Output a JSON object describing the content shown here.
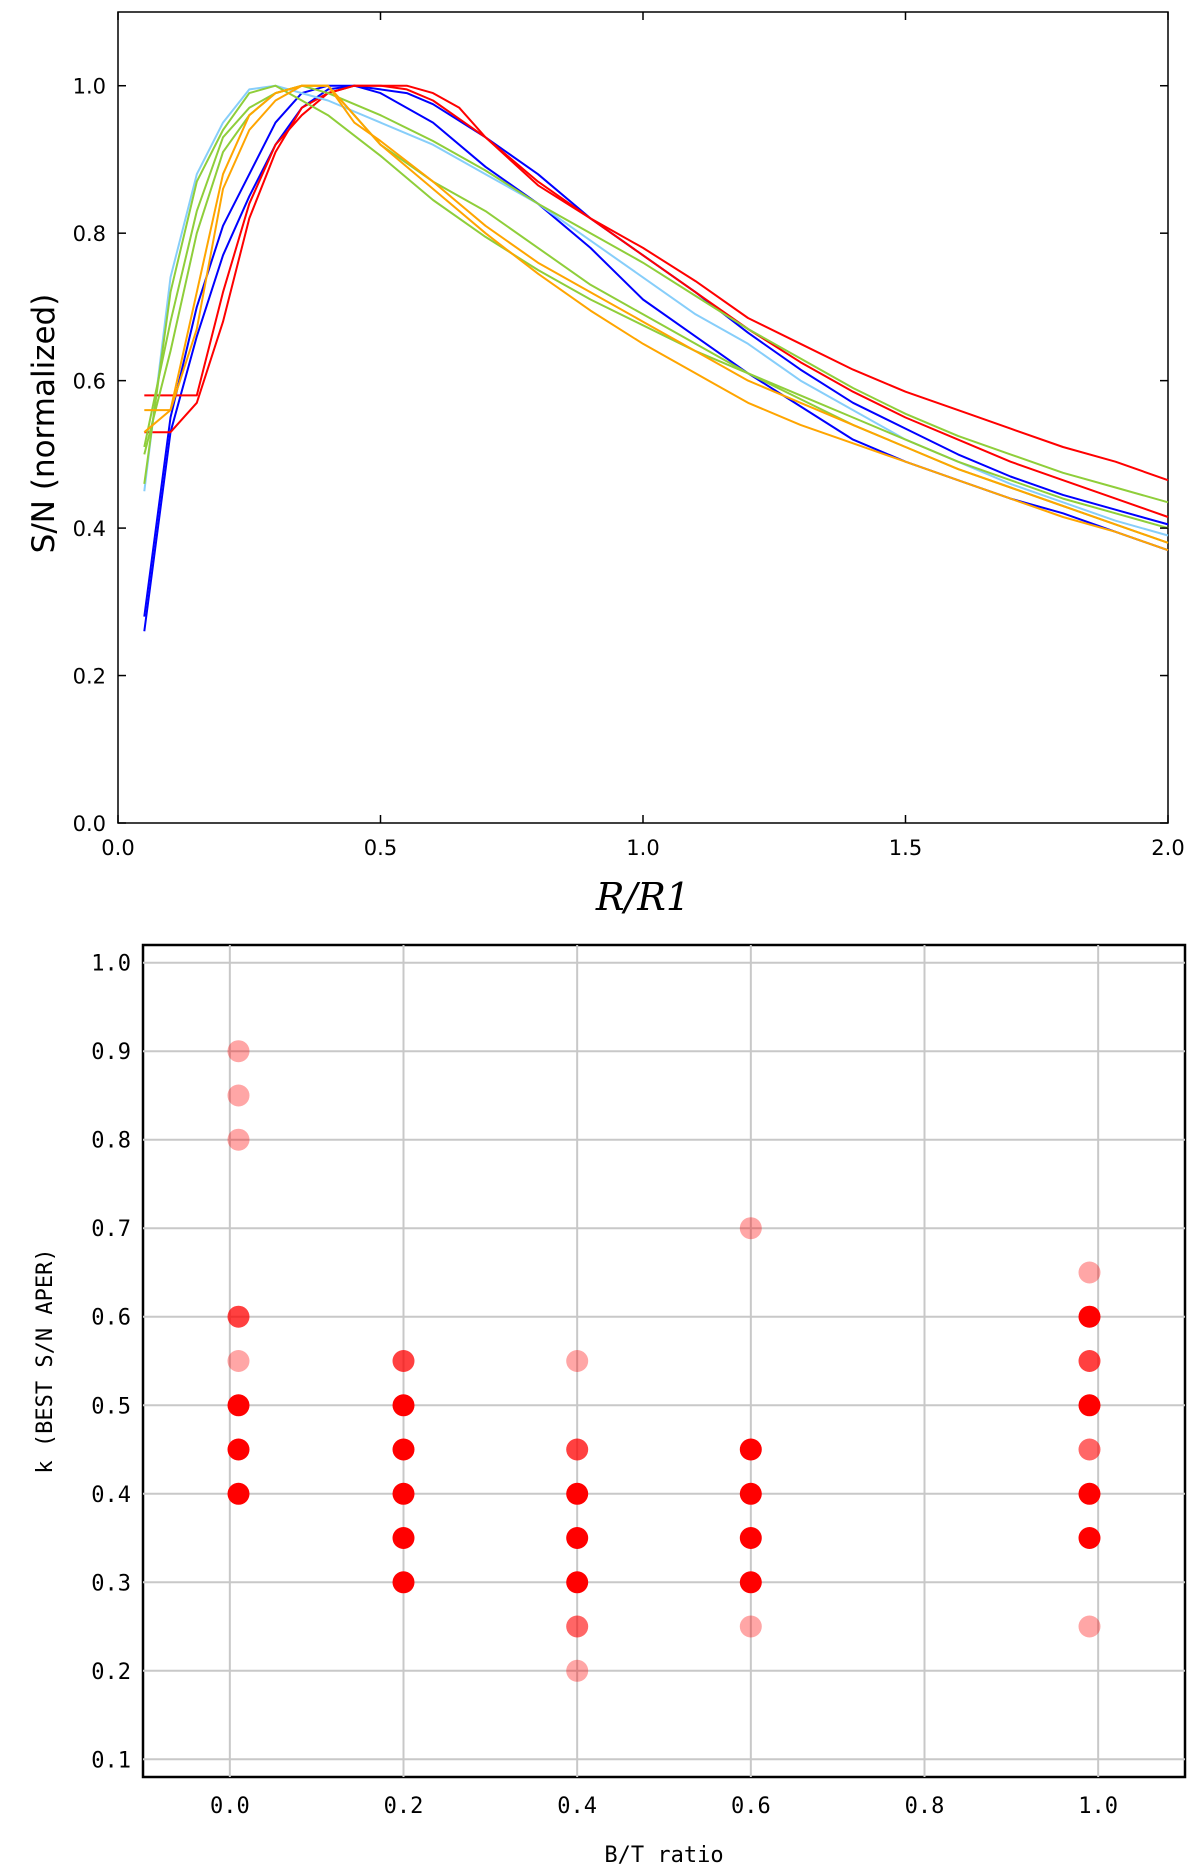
{
  "chart_data": [
    {
      "type": "line",
      "title": "",
      "xlabel": "R/R1",
      "ylabel": "S/N (normalized)",
      "xlim": [
        0.0,
        2.0
      ],
      "ylim": [
        0.0,
        1.1
      ],
      "xticks": [
        "0.0",
        "0.5",
        "1.0",
        "1.5",
        "2.0"
      ],
      "yticks": [
        "0.0",
        "0.2",
        "0.4",
        "0.6",
        "0.8",
        "1.0"
      ],
      "colors": {
        "blue": "#0000ff",
        "red": "#ff0000",
        "lightblue": "#87cefa",
        "green": "#8fce3a",
        "orange": "#ffa500"
      },
      "series": [
        {
          "name": "blue-1",
          "color": "blue",
          "x": [
            0.05,
            0.1,
            0.15,
            0.2,
            0.25,
            0.3,
            0.35,
            0.4,
            0.45,
            0.5,
            0.6,
            0.7,
            0.8,
            0.9,
            1.0,
            1.1,
            1.2,
            1.3,
            1.4,
            1.5,
            1.6,
            1.7,
            1.8,
            1.9,
            2.0
          ],
          "y": [
            0.26,
            0.53,
            0.66,
            0.77,
            0.85,
            0.92,
            0.97,
            0.995,
            1.0,
            0.99,
            0.95,
            0.89,
            0.84,
            0.78,
            0.71,
            0.66,
            0.61,
            0.565,
            0.52,
            0.49,
            0.465,
            0.44,
            0.42,
            0.395,
            0.37
          ]
        },
        {
          "name": "blue-2",
          "color": "blue",
          "x": [
            0.05,
            0.1,
            0.15,
            0.2,
            0.25,
            0.3,
            0.35,
            0.4,
            0.45,
            0.5,
            0.55,
            0.6,
            0.7,
            0.8,
            0.9,
            1.0,
            1.1,
            1.2,
            1.3,
            1.4,
            1.5,
            1.6,
            1.7,
            1.8,
            1.9,
            2.0
          ],
          "y": [
            0.28,
            0.55,
            0.7,
            0.81,
            0.88,
            0.95,
            0.99,
            1.0,
            1.0,
            0.995,
            0.99,
            0.975,
            0.93,
            0.88,
            0.82,
            0.77,
            0.72,
            0.665,
            0.615,
            0.57,
            0.535,
            0.5,
            0.47,
            0.445,
            0.425,
            0.405
          ]
        },
        {
          "name": "red-1",
          "color": "red",
          "x": [
            0.05,
            0.1,
            0.15,
            0.2,
            0.25,
            0.3,
            0.35,
            0.4,
            0.45,
            0.5,
            0.55,
            0.6,
            0.65,
            0.7,
            0.8,
            0.9,
            1.0,
            1.1,
            1.2,
            1.3,
            1.4,
            1.5,
            1.6,
            1.7,
            1.8,
            1.9,
            2.0
          ],
          "y": [
            0.53,
            0.53,
            0.57,
            0.68,
            0.82,
            0.91,
            0.97,
            0.99,
            1.0,
            1.0,
            1.0,
            0.99,
            0.97,
            0.93,
            0.87,
            0.82,
            0.78,
            0.735,
            0.685,
            0.65,
            0.615,
            0.585,
            0.56,
            0.535,
            0.51,
            0.49,
            0.465
          ]
        },
        {
          "name": "red-2",
          "color": "red",
          "x": [
            0.05,
            0.1,
            0.15,
            0.2,
            0.25,
            0.3,
            0.35,
            0.4,
            0.45,
            0.5,
            0.55,
            0.6,
            0.7,
            0.8,
            0.9,
            1.0,
            1.1,
            1.2,
            1.3,
            1.4,
            1.5,
            1.6,
            1.7,
            1.8,
            1.9,
            2.0
          ],
          "y": [
            0.58,
            0.58,
            0.58,
            0.72,
            0.84,
            0.92,
            0.96,
            0.99,
            1.0,
            1.0,
            0.995,
            0.98,
            0.93,
            0.865,
            0.82,
            0.77,
            0.72,
            0.67,
            0.625,
            0.585,
            0.55,
            0.52,
            0.49,
            0.465,
            0.44,
            0.415
          ]
        },
        {
          "name": "lightblue-1",
          "color": "lightblue",
          "x": [
            0.05,
            0.1,
            0.15,
            0.2,
            0.25,
            0.3,
            0.35,
            0.4,
            0.5,
            0.6,
            0.7,
            0.8,
            0.9,
            1.0,
            1.1,
            1.2,
            1.3,
            1.4,
            1.5,
            1.6,
            1.7,
            1.8,
            1.9,
            2.0
          ],
          "y": [
            0.45,
            0.74,
            0.88,
            0.95,
            0.995,
            1.0,
            0.99,
            0.98,
            0.95,
            0.92,
            0.88,
            0.84,
            0.79,
            0.74,
            0.69,
            0.65,
            0.6,
            0.56,
            0.52,
            0.49,
            0.46,
            0.435,
            0.41,
            0.39
          ]
        },
        {
          "name": "green-1",
          "color": "green",
          "x": [
            0.05,
            0.1,
            0.15,
            0.2,
            0.25,
            0.3,
            0.35,
            0.4,
            0.5,
            0.6,
            0.7,
            0.8,
            0.9,
            1.0,
            1.1,
            1.2,
            1.3,
            1.4,
            1.5,
            1.6,
            1.7,
            1.8,
            1.9,
            2.0
          ],
          "y": [
            0.46,
            0.72,
            0.87,
            0.94,
            0.99,
            1.0,
            0.98,
            0.96,
            0.905,
            0.845,
            0.795,
            0.75,
            0.71,
            0.675,
            0.64,
            0.61,
            0.58,
            0.55,
            0.52,
            0.49,
            0.465,
            0.44,
            0.42,
            0.4
          ]
        },
        {
          "name": "green-2",
          "color": "green",
          "x": [
            0.05,
            0.1,
            0.15,
            0.2,
            0.25,
            0.3,
            0.35,
            0.4,
            0.5,
            0.6,
            0.7,
            0.8,
            0.9,
            1.0,
            1.1,
            1.2,
            1.3,
            1.4,
            1.5,
            1.6,
            1.7,
            1.8,
            1.9,
            2.0
          ],
          "y": [
            0.51,
            0.68,
            0.83,
            0.93,
            0.97,
            0.99,
            1.0,
            0.99,
            0.96,
            0.925,
            0.885,
            0.84,
            0.8,
            0.76,
            0.715,
            0.67,
            0.63,
            0.59,
            0.555,
            0.525,
            0.5,
            0.475,
            0.455,
            0.435
          ]
        },
        {
          "name": "green-3",
          "color": "green",
          "x": [
            0.05,
            0.1,
            0.15,
            0.2,
            0.25,
            0.3,
            0.35,
            0.4,
            0.45,
            0.5,
            0.6,
            0.7,
            0.8,
            0.9,
            1.0,
            1.1,
            1.2,
            1.3,
            1.4,
            1.5,
            1.6,
            1.7,
            1.8,
            1.9,
            2.0
          ],
          "y": [
            0.5,
            0.64,
            0.8,
            0.91,
            0.96,
            0.99,
            1.0,
            1.0,
            0.96,
            0.92,
            0.87,
            0.83,
            0.78,
            0.73,
            0.69,
            0.65,
            0.61,
            0.575,
            0.54,
            0.51,
            0.48,
            0.455,
            0.43,
            0.405,
            0.38
          ]
        },
        {
          "name": "orange-1",
          "color": "orange",
          "x": [
            0.05,
            0.1,
            0.15,
            0.2,
            0.25,
            0.3,
            0.35,
            0.4,
            0.45,
            0.5,
            0.6,
            0.7,
            0.8,
            0.9,
            1.0,
            1.1,
            1.2,
            1.3,
            1.4,
            1.5,
            1.6,
            1.7,
            1.8,
            1.9,
            2.0
          ],
          "y": [
            0.53,
            0.56,
            0.72,
            0.88,
            0.96,
            0.99,
            1.0,
            1.0,
            0.95,
            0.925,
            0.87,
            0.81,
            0.76,
            0.72,
            0.68,
            0.64,
            0.6,
            0.57,
            0.54,
            0.51,
            0.48,
            0.455,
            0.43,
            0.405,
            0.38
          ]
        },
        {
          "name": "orange-2",
          "color": "orange",
          "x": [
            0.05,
            0.1,
            0.15,
            0.2,
            0.25,
            0.3,
            0.35,
            0.4,
            0.45,
            0.5,
            0.6,
            0.7,
            0.8,
            0.9,
            1.0,
            1.1,
            1.2,
            1.3,
            1.4,
            1.5,
            1.6,
            1.7,
            1.8,
            1.9,
            2.0
          ],
          "y": [
            0.56,
            0.56,
            0.67,
            0.86,
            0.94,
            0.98,
            1.0,
            1.0,
            0.96,
            0.92,
            0.86,
            0.8,
            0.745,
            0.695,
            0.65,
            0.61,
            0.57,
            0.54,
            0.515,
            0.49,
            0.465,
            0.44,
            0.415,
            0.395,
            0.37
          ]
        }
      ]
    },
    {
      "type": "scatter",
      "title": "",
      "xlabel": "B/T ratio",
      "ylabel": "k (BEST S/N APER)",
      "xlim": [
        -0.1,
        1.1
      ],
      "ylim": [
        0.08,
        1.02
      ],
      "xticks": [
        "0.0",
        "0.2",
        "0.4",
        "0.6",
        "0.8",
        "1.0"
      ],
      "yticks": [
        "0.1",
        "0.2",
        "0.3",
        "0.4",
        "0.5",
        "0.6",
        "0.7",
        "0.8",
        "0.9",
        "1.0"
      ],
      "grid": true,
      "marker_color": "#ff0000",
      "points": [
        {
          "x": 0.01,
          "y": 0.9,
          "alpha": 0.35
        },
        {
          "x": 0.01,
          "y": 0.85,
          "alpha": 0.35
        },
        {
          "x": 0.01,
          "y": 0.8,
          "alpha": 0.35
        },
        {
          "x": 0.01,
          "y": 0.6,
          "alpha": 0.75
        },
        {
          "x": 0.01,
          "y": 0.55,
          "alpha": 0.35
        },
        {
          "x": 0.01,
          "y": 0.5,
          "alpha": 1.0
        },
        {
          "x": 0.01,
          "y": 0.45,
          "alpha": 1.0
        },
        {
          "x": 0.01,
          "y": 0.4,
          "alpha": 1.0
        },
        {
          "x": 0.2,
          "y": 0.55,
          "alpha": 0.75
        },
        {
          "x": 0.2,
          "y": 0.5,
          "alpha": 1.0
        },
        {
          "x": 0.2,
          "y": 0.45,
          "alpha": 1.0
        },
        {
          "x": 0.2,
          "y": 0.4,
          "alpha": 1.0
        },
        {
          "x": 0.2,
          "y": 0.35,
          "alpha": 1.0
        },
        {
          "x": 0.2,
          "y": 0.3,
          "alpha": 1.0
        },
        {
          "x": 0.4,
          "y": 0.55,
          "alpha": 0.35
        },
        {
          "x": 0.4,
          "y": 0.45,
          "alpha": 0.75
        },
        {
          "x": 0.4,
          "y": 0.4,
          "alpha": 1.0
        },
        {
          "x": 0.4,
          "y": 0.35,
          "alpha": 1.0
        },
        {
          "x": 0.4,
          "y": 0.3,
          "alpha": 1.0
        },
        {
          "x": 0.4,
          "y": 0.25,
          "alpha": 0.6
        },
        {
          "x": 0.4,
          "y": 0.2,
          "alpha": 0.35
        },
        {
          "x": 0.6,
          "y": 0.7,
          "alpha": 0.35
        },
        {
          "x": 0.6,
          "y": 0.45,
          "alpha": 1.0
        },
        {
          "x": 0.6,
          "y": 0.4,
          "alpha": 1.0
        },
        {
          "x": 0.6,
          "y": 0.35,
          "alpha": 1.0
        },
        {
          "x": 0.6,
          "y": 0.3,
          "alpha": 1.0
        },
        {
          "x": 0.6,
          "y": 0.25,
          "alpha": 0.35
        },
        {
          "x": 0.99,
          "y": 0.65,
          "alpha": 0.35
        },
        {
          "x": 0.99,
          "y": 0.6,
          "alpha": 1.0
        },
        {
          "x": 0.99,
          "y": 0.55,
          "alpha": 0.75
        },
        {
          "x": 0.99,
          "y": 0.5,
          "alpha": 1.0
        },
        {
          "x": 0.99,
          "y": 0.45,
          "alpha": 0.6
        },
        {
          "x": 0.99,
          "y": 0.4,
          "alpha": 1.0
        },
        {
          "x": 0.99,
          "y": 0.35,
          "alpha": 1.0
        },
        {
          "x": 0.99,
          "y": 0.25,
          "alpha": 0.35
        }
      ]
    }
  ]
}
